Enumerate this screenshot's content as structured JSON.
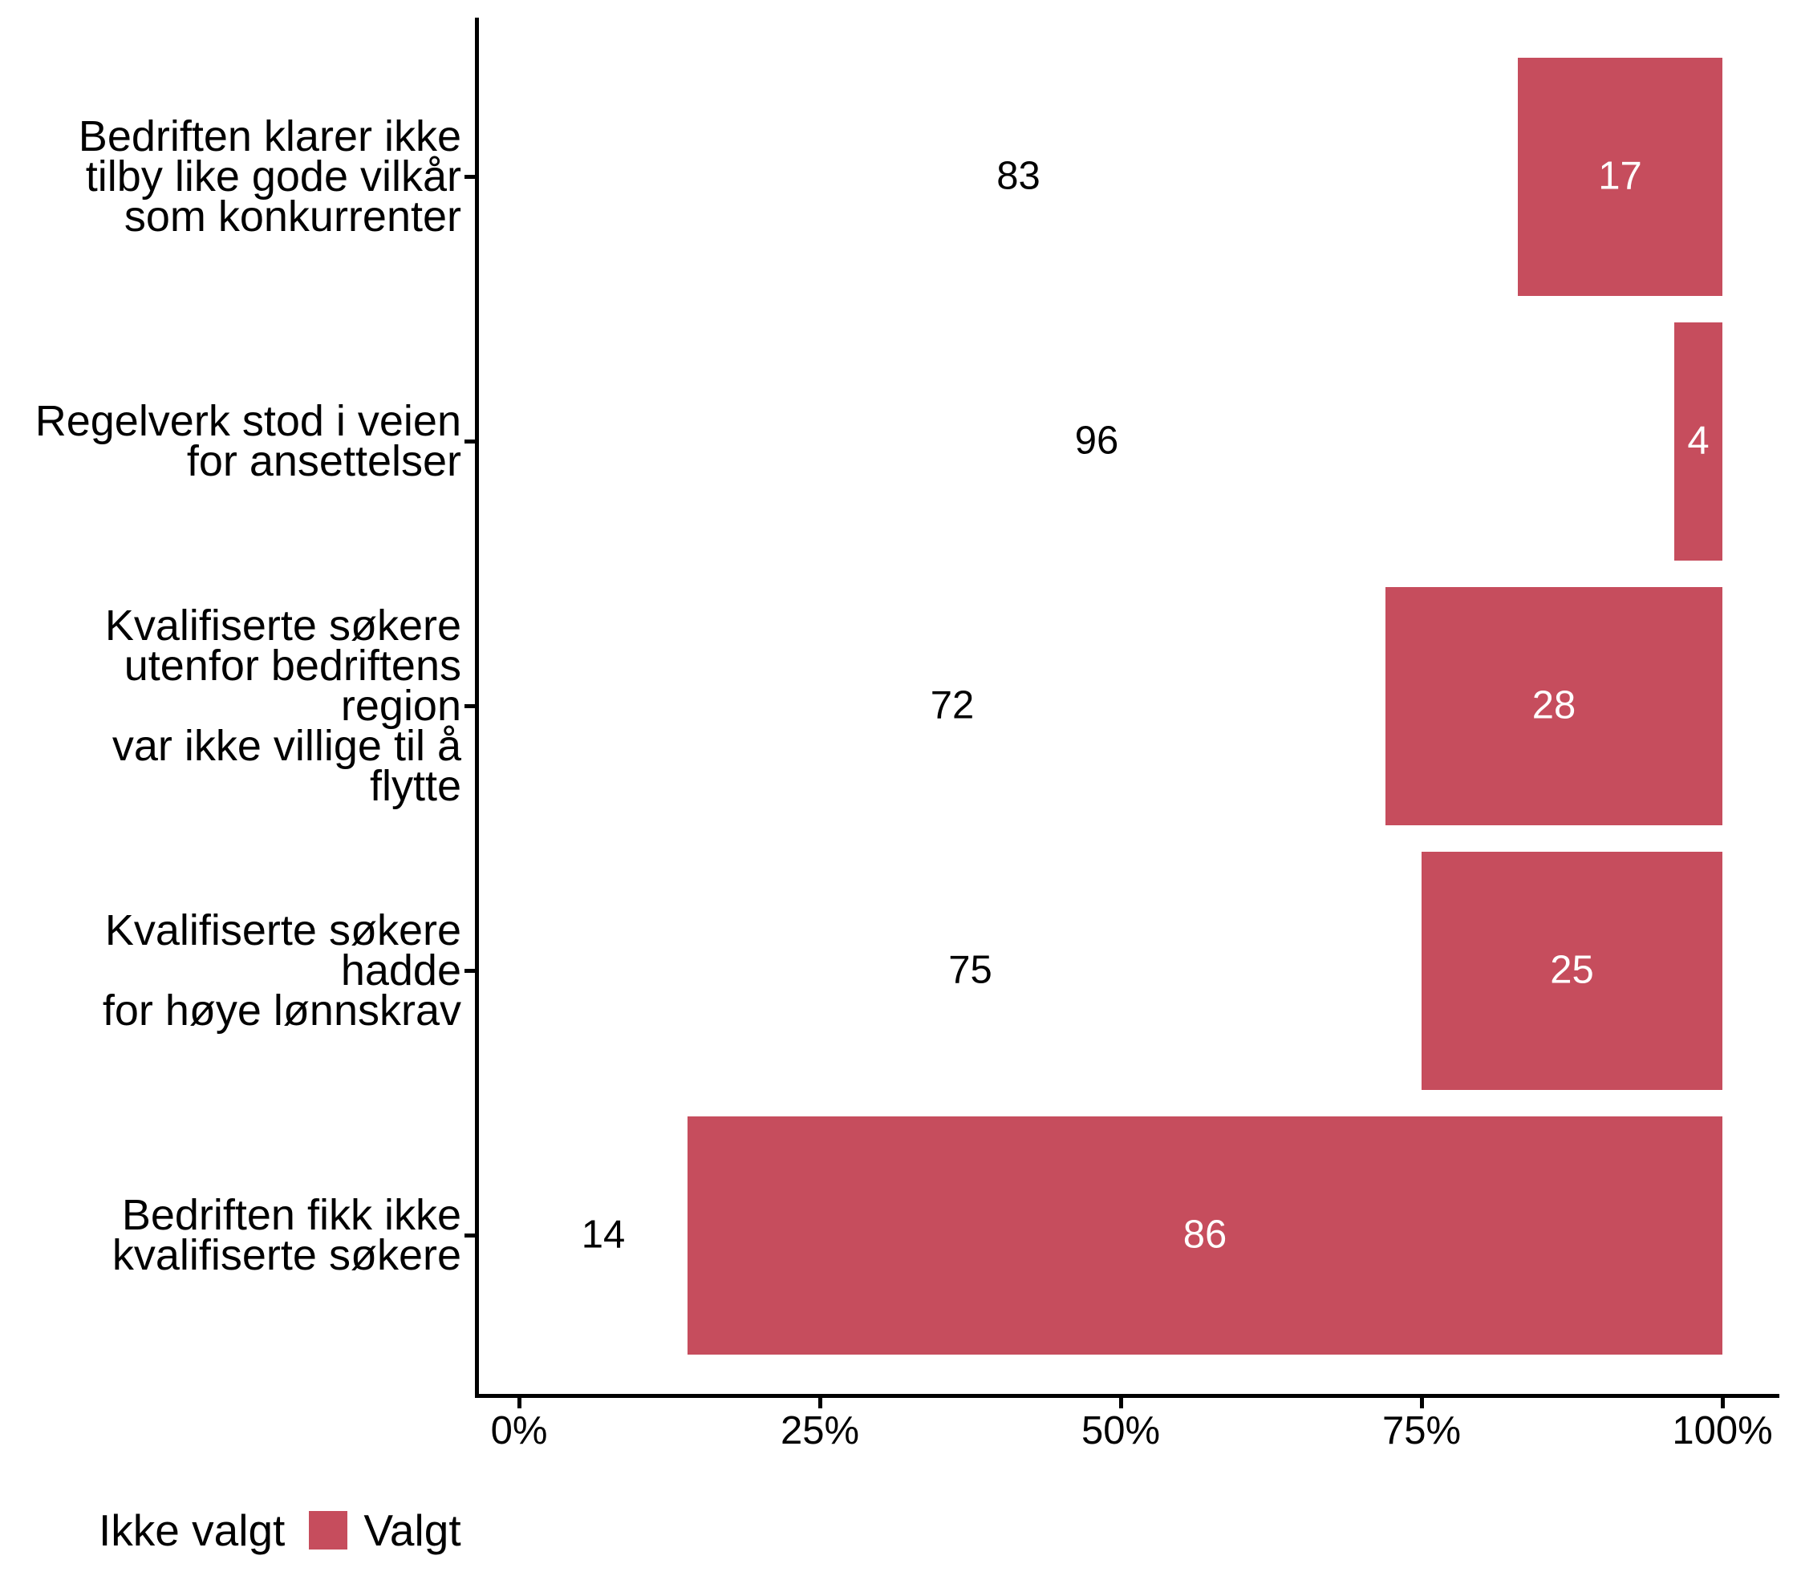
{
  "chart_data": {
    "type": "bar",
    "orientation": "horizontal",
    "stacked": true,
    "unit": "percent",
    "title": "",
    "xlabel": "",
    "ylabel": "",
    "x_axis": {
      "min": 0,
      "max": 100,
      "tick_values": [
        0,
        25,
        50,
        75,
        100
      ],
      "tick_labels": [
        "0%",
        "25%",
        "50%",
        "75%",
        "100%"
      ]
    },
    "grid": false,
    "legend_position": "bottom-left",
    "categories_top_to_bottom": [
      {
        "label": "Bedriften klarer ikke tilby like gode vilkår som konkurrenter",
        "lines": [
          "Bedriften klarer ikke",
          "tilby like gode vilkår",
          "som konkurrenter"
        ]
      },
      {
        "label": "Regelverk stod i veien for ansettelser",
        "lines": [
          "Regelverk stod i veien",
          "for ansettelser"
        ]
      },
      {
        "label": "Kvalifiserte søkere utenfor bedriftens region var ikke villige til å flytte",
        "lines": [
          "Kvalifiserte søkere",
          "utenfor bedriftens region",
          "var ikke villige til å",
          "flytte"
        ]
      },
      {
        "label": "Kvalifiserte søkere hadde for høye lønnskrav",
        "lines": [
          "Kvalifiserte søkere hadde",
          "for høye lønnskrav"
        ]
      },
      {
        "label": "Bedriften fikk ikke kvalifiserte søkere",
        "lines": [
          "Bedriften fikk ikke",
          "kvalifiserte søkere"
        ]
      }
    ],
    "series": [
      {
        "name": "Ikke valgt",
        "color": "#FFFFFF",
        "label_color": "#000000",
        "values": [
          83,
          96,
          72,
          75,
          14
        ]
      },
      {
        "name": "Valgt",
        "color": "#C64D5D",
        "label_color": "#FFFFFF",
        "values": [
          17,
          4,
          28,
          25,
          86
        ]
      }
    ],
    "legend": [
      {
        "label": "Ikke valgt",
        "color": "#FFFFFF"
      },
      {
        "label": "Valgt",
        "color": "#C64D5D"
      }
    ]
  },
  "colors": {
    "background": "#FFFFFF",
    "axis": "#000000",
    "text": "#000000",
    "valgt_red": "#C64D5D",
    "label_on_red": "#FFFFFF"
  }
}
